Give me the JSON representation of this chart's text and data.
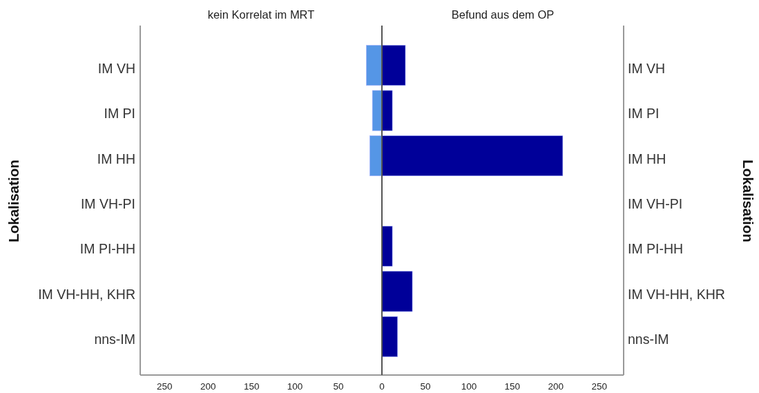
{
  "chart_data": [
    {
      "type": "bar",
      "orientation": "horizontal",
      "title": "kein Korrelat im MRT",
      "ylabel": "Lokalisation",
      "categories": [
        "IM VH",
        "IM PI",
        "IM HH",
        "IM VH-PI",
        "IM PI-HH",
        "IM VH-HH, KHR",
        "nns-IM"
      ],
      "values": [
        18,
        11,
        14,
        0,
        0,
        0,
        0
      ],
      "color": "#5596e6",
      "xlim": [
        278,
        0
      ],
      "xticks": [
        250,
        200,
        150,
        100,
        50
      ]
    },
    {
      "type": "bar",
      "orientation": "horizontal",
      "title": "Befund aus dem OP",
      "ylabel": "Lokalisation",
      "categories": [
        "IM VH",
        "IM PI",
        "IM HH",
        "IM VH-PI",
        "IM PI-HH",
        "IM VH-HH, KHR",
        "nns-IM"
      ],
      "values": [
        27,
        12,
        208,
        0,
        12,
        35,
        18
      ],
      "color": "#000099",
      "xlim": [
        0,
        278
      ],
      "xticks": [
        0,
        50,
        100,
        150,
        200,
        250
      ]
    }
  ]
}
